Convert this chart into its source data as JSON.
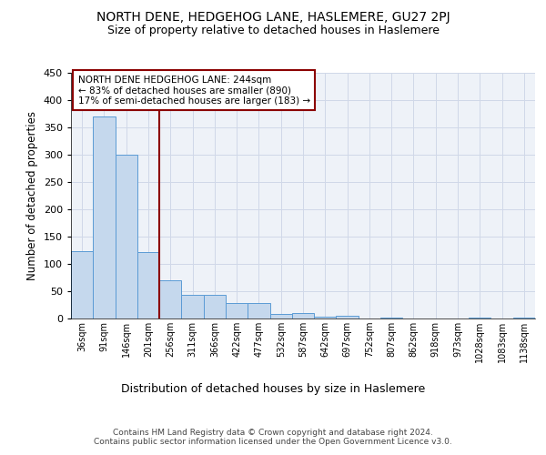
{
  "title": "NORTH DENE, HEDGEHOG LANE, HASLEMERE, GU27 2PJ",
  "subtitle": "Size of property relative to detached houses in Haslemere",
  "xlabel": "Distribution of detached houses by size in Haslemere",
  "ylabel": "Number of detached properties",
  "bar_values": [
    123,
    370,
    300,
    122,
    70,
    43,
    43,
    28,
    28,
    8,
    10,
    4,
    5,
    0,
    2,
    0,
    0,
    0,
    2,
    0,
    2
  ],
  "bar_labels": [
    "36sqm",
    "91sqm",
    "146sqm",
    "201sqm",
    "256sqm",
    "311sqm",
    "366sqm",
    "422sqm",
    "477sqm",
    "532sqm",
    "587sqm",
    "642sqm",
    "697sqm",
    "752sqm",
    "807sqm",
    "862sqm",
    "918sqm",
    "973sqm",
    "1028sqm",
    "1083sqm",
    "1138sqm"
  ],
  "bar_color": "#c5d8ed",
  "bar_edge_color": "#5b9bd5",
  "vline_color": "#8b0000",
  "annotation_box_text": "NORTH DENE HEDGEHOG LANE: 244sqm\n← 83% of detached houses are smaller (890)\n17% of semi-detached houses are larger (183) →",
  "annotation_box_color": "#8b0000",
  "ylim": [
    0,
    450
  ],
  "yticks": [
    0,
    50,
    100,
    150,
    200,
    250,
    300,
    350,
    400,
    450
  ],
  "grid_color": "#d0d8e8",
  "background_color": "#eef2f8",
  "footer_text": "Contains HM Land Registry data © Crown copyright and database right 2024.\nContains public sector information licensed under the Open Government Licence v3.0.",
  "title_fontsize": 10,
  "subtitle_fontsize": 9,
  "xlabel_fontsize": 9,
  "ylabel_fontsize": 8.5,
  "annotation_fontsize": 7.5,
  "tick_fontsize": 7,
  "ytick_fontsize": 8,
  "footer_fontsize": 6.5
}
